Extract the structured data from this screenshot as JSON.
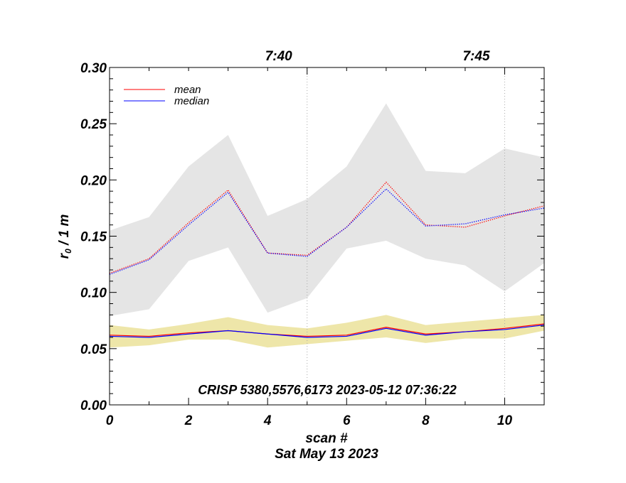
{
  "chart_data": {
    "type": "line",
    "title": "",
    "xlabel": "scan #",
    "xlabel2": "Sat May 13 2023",
    "ylabel_main": "r",
    "ylabel_sub": "0",
    "ylabel_rest": " / 1 m",
    "xlim": [
      0,
      11
    ],
    "ylim": [
      0.0,
      0.3
    ],
    "x_ticks": [
      0,
      2,
      4,
      6,
      8,
      10
    ],
    "x_tick_labels": [
      "0",
      "2",
      "4",
      "6",
      "8",
      "10"
    ],
    "y_ticks": [
      0.0,
      0.05,
      0.1,
      0.15,
      0.2,
      0.25,
      0.3
    ],
    "y_tick_labels": [
      "0.00",
      "0.05",
      "0.10",
      "0.15",
      "0.20",
      "0.25",
      "0.30"
    ],
    "top_axis": {
      "tick_positions": [
        5,
        10
      ],
      "tick_labels": [
        "7:40",
        "7:45"
      ]
    },
    "annotation": "CRISP 5380,5576,6173 2023-05-12 07:36:22",
    "legend": {
      "position": "top-left",
      "entries": [
        {
          "label": "mean",
          "color": "#ff0000"
        },
        {
          "label": "median",
          "color": "#0000ff"
        }
      ]
    },
    "x": [
      0,
      1,
      2,
      3,
      4,
      5,
      6,
      7,
      8,
      9,
      10,
      11
    ],
    "bands": [
      {
        "name": "upper-spread",
        "color": "#e5e5e5",
        "upper": [
          0.155,
          0.167,
          0.212,
          0.24,
          0.168,
          0.183,
          0.212,
          0.268,
          0.208,
          0.206,
          0.228,
          0.22
        ],
        "lower": [
          0.079,
          0.085,
          0.128,
          0.14,
          0.082,
          0.095,
          0.139,
          0.146,
          0.13,
          0.124,
          0.101,
          0.126
        ]
      },
      {
        "name": "lower-spread",
        "color": "#eee6a9",
        "upper": [
          0.071,
          0.067,
          0.072,
          0.078,
          0.071,
          0.068,
          0.073,
          0.08,
          0.071,
          0.074,
          0.077,
          0.08
        ],
        "lower": [
          0.051,
          0.053,
          0.058,
          0.058,
          0.051,
          0.054,
          0.057,
          0.06,
          0.055,
          0.059,
          0.059,
          0.066
        ]
      }
    ],
    "series": [
      {
        "name": "mean",
        "color": "#ff0000",
        "style": "dotted",
        "values": [
          0.117,
          0.13,
          0.162,
          0.191,
          0.135,
          0.133,
          0.158,
          0.198,
          0.16,
          0.158,
          0.168,
          0.177
        ]
      },
      {
        "name": "median",
        "color": "#0000ff",
        "style": "dotted",
        "values": [
          0.116,
          0.129,
          0.16,
          0.189,
          0.135,
          0.132,
          0.158,
          0.192,
          0.159,
          0.161,
          0.169,
          0.175
        ]
      },
      {
        "name": "mean",
        "color": "#ff0000",
        "style": "solid",
        "values": [
          0.062,
          0.061,
          0.064,
          0.066,
          0.063,
          0.061,
          0.062,
          0.069,
          0.063,
          0.065,
          0.068,
          0.072
        ]
      },
      {
        "name": "median",
        "color": "#0000ff",
        "style": "solid",
        "values": [
          0.061,
          0.06,
          0.063,
          0.066,
          0.063,
          0.06,
          0.061,
          0.068,
          0.062,
          0.065,
          0.067,
          0.071
        ]
      }
    ]
  }
}
